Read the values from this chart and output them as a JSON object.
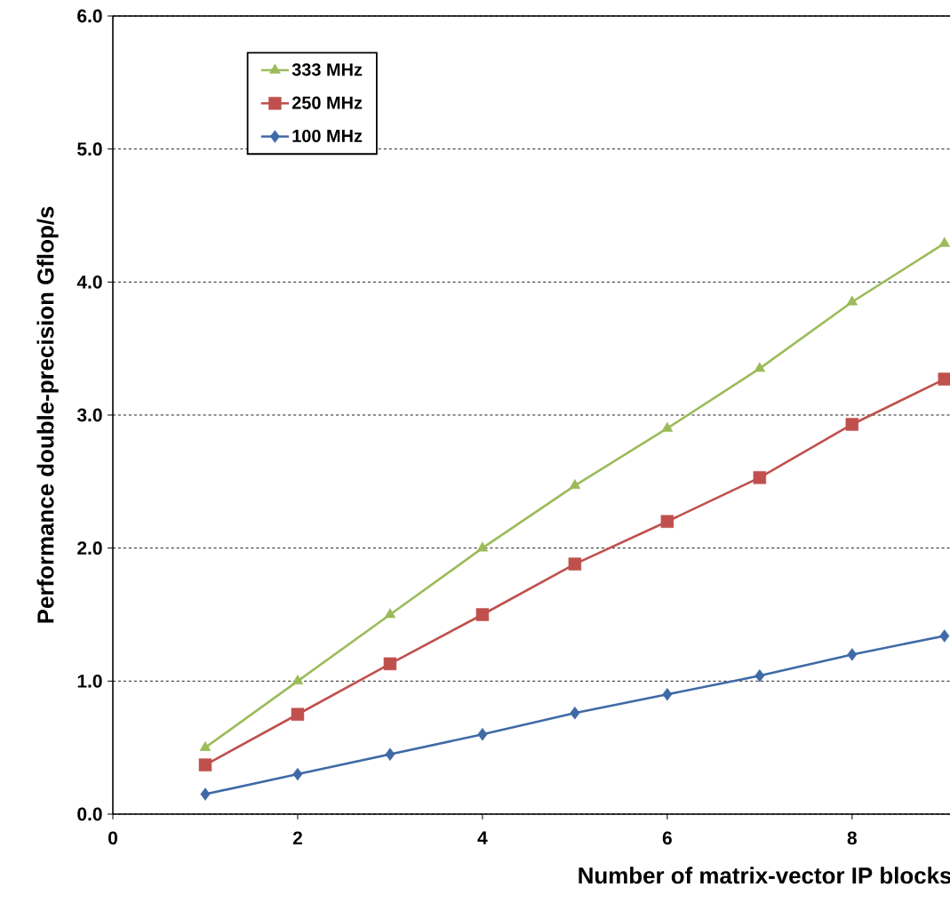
{
  "chart_data": {
    "type": "line",
    "xlabel": "Number of matrix-vector IP blocks",
    "ylabel": "Performance double-precision Gflop/s",
    "x": [
      1,
      2,
      3,
      4,
      5,
      6,
      7,
      8,
      9
    ],
    "series": [
      {
        "name": "333 MHz",
        "color": "#9bbb59",
        "marker": "triangle",
        "values": [
          0.5,
          1.0,
          1.5,
          2.0,
          2.47,
          2.9,
          3.35,
          3.85,
          4.29
        ]
      },
      {
        "name": "250 MHz",
        "color": "#c0504d",
        "marker": "square",
        "values": [
          0.37,
          0.75,
          1.13,
          1.5,
          1.88,
          2.2,
          2.53,
          2.93,
          3.27
        ]
      },
      {
        "name": "100 MHz",
        "color": "#3f6aa6",
        "marker": "diamond",
        "values": [
          0.15,
          0.3,
          0.45,
          0.6,
          0.76,
          0.9,
          1.04,
          1.2,
          1.34
        ]
      }
    ],
    "xlim": [
      0,
      9.06
    ],
    "ylim": [
      0,
      6
    ],
    "xticks": [
      0,
      2,
      4,
      6,
      8
    ],
    "yticks": [
      {
        "value": 0,
        "label": "0.0"
      },
      {
        "value": 1,
        "label": "1.0"
      },
      {
        "value": 2,
        "label": "2.0"
      },
      {
        "value": 3,
        "label": "3.0"
      },
      {
        "value": 4,
        "label": "4.0"
      },
      {
        "value": 5,
        "label": "5.0"
      },
      {
        "value": 6,
        "label": "6.0"
      }
    ],
    "grid": "y",
    "legend": "top left",
    "line_style": "solid"
  }
}
